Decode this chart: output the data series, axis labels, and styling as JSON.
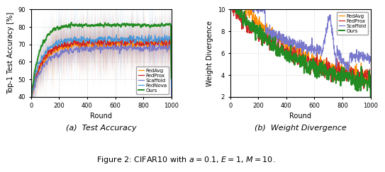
{
  "left_plot": {
    "xlabel": "Round",
    "ylabel": "Top-1 Test Accuracy [%]",
    "ylim": [
      40,
      90
    ],
    "yticks": [
      40,
      50,
      60,
      70,
      80,
      90
    ],
    "xlim": [
      0,
      1000
    ],
    "xticks": [
      0,
      200,
      400,
      600,
      800,
      1000
    ],
    "colors": {
      "FedAvg": "#FF8C00",
      "FedProx": "#CC2222",
      "Scaffold": "#7777CC",
      "FedNova": "#4499DD",
      "Ours": "#228B22"
    },
    "legend_order": [
      "FedAvg",
      "FedProx",
      "Scaffold",
      "FedNova",
      "Ours"
    ],
    "sub_label": "(a)  Test Accuracy"
  },
  "right_plot": {
    "xlabel": "Round",
    "ylabel": "Weight Divergence",
    "ylim": [
      2,
      10
    ],
    "yticks": [
      2,
      4,
      6,
      8,
      10
    ],
    "xlim": [
      0,
      1000
    ],
    "xticks": [
      0,
      200,
      400,
      600,
      800,
      1000
    ],
    "colors": {
      "FedAvg": "#FF8C00",
      "FedProx": "#CC2222",
      "Scaffold": "#7777CC",
      "Ours": "#228B22"
    },
    "legend_order": [
      "FedAvg",
      "FedProx",
      "Scaffold",
      "Ours"
    ],
    "sub_label": "(b)  Weight Divergence"
  },
  "figure_caption": "Figure 2: CIFAR10 with $a = 0.1$, $E = 1$, $M = 10$.",
  "background_color": "#ffffff",
  "grid_color": "#cccccc",
  "grid_style": "--",
  "grid_alpha": 0.7
}
